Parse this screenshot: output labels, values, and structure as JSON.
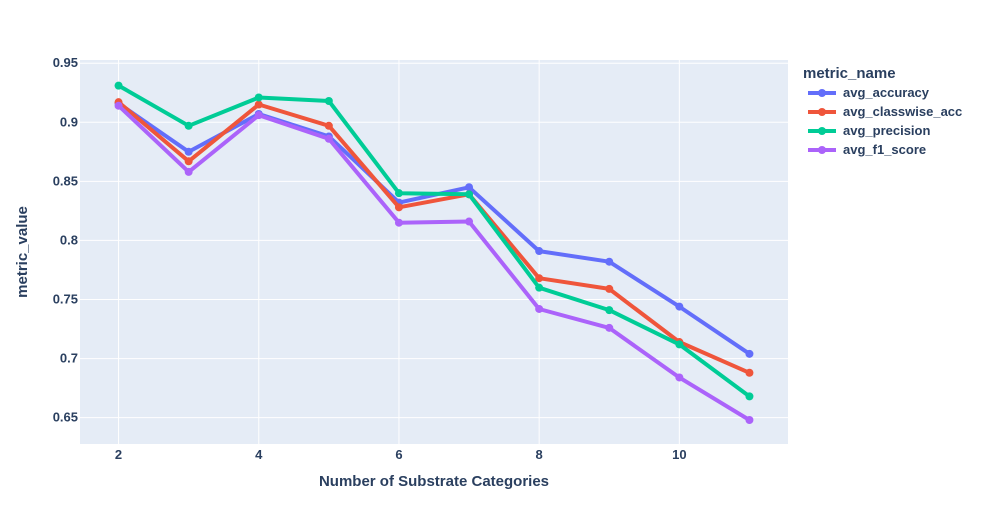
{
  "chart_data": {
    "type": "line",
    "xlabel": "Number of Substrate Categories",
    "ylabel": "metric_value",
    "xlim": [
      1.45,
      11.55
    ],
    "ylim": [
      0.6277,
      0.9527
    ],
    "xticks": [
      2,
      4,
      6,
      8,
      10
    ],
    "yticks": [
      0.65,
      0.7,
      0.75,
      0.8,
      0.85,
      0.9,
      0.95
    ],
    "ytick_labels": [
      "0.65",
      "0.7",
      "0.75",
      "0.8",
      "0.85",
      "0.9",
      "0.95"
    ],
    "grid": true,
    "legend_title": "metric_name",
    "legend_position": "right",
    "x": [
      2,
      3,
      4,
      5,
      6,
      7,
      8,
      9,
      10,
      11
    ],
    "series": [
      {
        "name": "avg_accuracy",
        "color": "#636efa",
        "values": [
          0.916,
          0.875,
          0.907,
          0.888,
          0.832,
          0.845,
          0.791,
          0.782,
          0.744,
          0.704
        ]
      },
      {
        "name": "avg_classwise_acc",
        "color": "#ef553b",
        "values": [
          0.917,
          0.867,
          0.915,
          0.897,
          0.828,
          0.839,
          0.768,
          0.759,
          0.714,
          0.688
        ]
      },
      {
        "name": "avg_precision",
        "color": "#00cc96",
        "values": [
          0.931,
          0.897,
          0.921,
          0.918,
          0.84,
          0.839,
          0.76,
          0.741,
          0.712,
          0.668
        ]
      },
      {
        "name": "avg_f1_score",
        "color": "#ab63fa",
        "values": [
          0.914,
          0.858,
          0.906,
          0.886,
          0.815,
          0.816,
          0.742,
          0.726,
          0.684,
          0.648
        ]
      }
    ]
  }
}
